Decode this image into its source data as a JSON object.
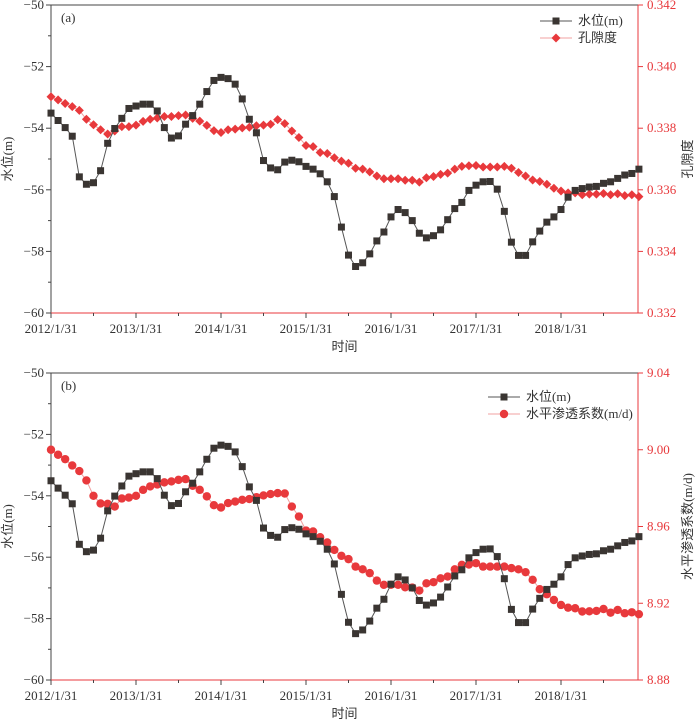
{
  "chart_data": [
    {
      "type": "line",
      "panel_label": "(a)",
      "xlabel": "时间",
      "ylabel": "水位(m)",
      "y2label": "孔隙度",
      "x_tick_labels": [
        "2012/1/31",
        "2013/1/31",
        "2014/1/31",
        "2015/1/31",
        "2016/1/31",
        "2017/1/31",
        "2018/1/31"
      ],
      "x_start": "2012/1/31",
      "x_interval": "monthly",
      "ylim": [
        -60,
        -50
      ],
      "y_ticks": [
        "-50",
        "-52",
        "-54",
        "-56",
        "-58",
        "-60"
      ],
      "y2lim": [
        0.332,
        0.342
      ],
      "y2_ticks": [
        "0.342",
        "0.340",
        "0.338",
        "0.336",
        "0.334",
        "0.332"
      ],
      "legend_position": "top-right",
      "series": [
        {
          "name": "水位(m)",
          "axis": "left",
          "marker": "square",
          "color": "#3a3532",
          "values": [
            -53.51,
            -53.75,
            -53.98,
            -54.26,
            -55.58,
            -55.82,
            -55.77,
            -55.38,
            -54.49,
            -54.01,
            -53.68,
            -53.36,
            -53.28,
            -53.22,
            -53.22,
            -53.44,
            -53.98,
            -54.32,
            -54.25,
            -53.87,
            -53.59,
            -53.22,
            -52.81,
            -52.45,
            -52.35,
            -52.39,
            -52.57,
            -53.05,
            -53.71,
            -54.15,
            -55.05,
            -55.29,
            -55.35,
            -55.1,
            -55.04,
            -55.09,
            -55.24,
            -55.33,
            -55.48,
            -55.74,
            -56.22,
            -57.21,
            -58.12,
            -58.49,
            -58.37,
            -58.08,
            -57.66,
            -57.37,
            -56.88,
            -56.64,
            -56.74,
            -57.0,
            -57.41,
            -57.56,
            -57.49,
            -57.3,
            -56.97,
            -56.61,
            -56.41,
            -56.02,
            -55.85,
            -55.74,
            -55.73,
            -55.98,
            -56.7,
            -57.7,
            -58.13,
            -58.13,
            -57.69,
            -57.34,
            -57.05,
            -56.88,
            -56.64,
            -56.24,
            -56.02,
            -55.96,
            -55.91,
            -55.89,
            -55.79,
            -55.74,
            -55.63,
            -55.52,
            -55.47,
            -55.33
          ]
        },
        {
          "name": "孔隙度",
          "axis": "right",
          "marker": "diamond",
          "color": "#e8393c",
          "values": [
            0.33902,
            0.33892,
            0.3388,
            0.3387,
            0.33858,
            0.33829,
            0.33811,
            0.33795,
            0.33781,
            0.33791,
            0.33805,
            0.33805,
            0.3381,
            0.33822,
            0.33829,
            0.33833,
            0.33838,
            0.33838,
            0.33841,
            0.33843,
            0.33832,
            0.33823,
            0.33809,
            0.33792,
            0.33786,
            0.33795,
            0.33797,
            0.33801,
            0.33803,
            0.33808,
            0.3381,
            0.33813,
            0.33828,
            0.33815,
            0.33791,
            0.3377,
            0.33744,
            0.3374,
            0.33721,
            0.33718,
            0.33704,
            0.33693,
            0.33686,
            0.3367,
            0.33667,
            0.33658,
            0.33645,
            0.33636,
            0.33636,
            0.33636,
            0.33631,
            0.33631,
            0.33625,
            0.33639,
            0.33643,
            0.3365,
            0.33654,
            0.33667,
            0.33676,
            0.33678,
            0.33679,
            0.33674,
            0.33674,
            0.33674,
            0.33676,
            0.3367,
            0.33656,
            0.33645,
            0.33632,
            0.33627,
            0.33618,
            0.33605,
            0.33596,
            0.3359,
            0.3359,
            0.33584,
            0.33586,
            0.33586,
            0.33588,
            0.33584,
            0.33587,
            0.33581,
            0.33584,
            0.33578
          ]
        }
      ]
    },
    {
      "type": "line",
      "panel_label": "(b)",
      "xlabel": "时间",
      "ylabel": "水位(m)",
      "y2label": "水平渗透系数(m/d)",
      "x_tick_labels": [
        "2012/1/31",
        "2013/1/31",
        "2014/1/31",
        "2015/1/31",
        "2016/1/31",
        "2017/1/31",
        "2018/1/31"
      ],
      "x_start": "2012/1/31",
      "x_interval": "monthly",
      "ylim": [
        -60,
        -50
      ],
      "y_ticks": [
        "-50",
        "-52",
        "-54",
        "-56",
        "-58",
        "-60"
      ],
      "y2lim": [
        8.88,
        9.04
      ],
      "y2_ticks": [
        "9.04",
        "9.00",
        "8.96",
        "8.92",
        "8.88"
      ],
      "legend_position": "top-right",
      "series": [
        {
          "name": "水位(m)",
          "axis": "left",
          "marker": "square",
          "color": "#3a3532",
          "values": [
            -53.51,
            -53.75,
            -53.98,
            -54.26,
            -55.58,
            -55.82,
            -55.77,
            -55.38,
            -54.49,
            -54.01,
            -53.68,
            -53.36,
            -53.28,
            -53.22,
            -53.22,
            -53.44,
            -53.98,
            -54.32,
            -54.25,
            -53.87,
            -53.59,
            -53.22,
            -52.81,
            -52.45,
            -52.35,
            -52.39,
            -52.57,
            -53.05,
            -53.71,
            -54.15,
            -55.05,
            -55.29,
            -55.35,
            -55.1,
            -55.04,
            -55.09,
            -55.24,
            -55.33,
            -55.48,
            -55.74,
            -56.22,
            -57.21,
            -58.12,
            -58.49,
            -58.37,
            -58.08,
            -57.66,
            -57.37,
            -56.88,
            -56.64,
            -56.74,
            -57.0,
            -57.41,
            -57.56,
            -57.49,
            -57.3,
            -56.97,
            -56.61,
            -56.41,
            -56.02,
            -55.85,
            -55.74,
            -55.73,
            -55.98,
            -56.7,
            -57.7,
            -58.13,
            -58.13,
            -57.69,
            -57.34,
            -57.05,
            -56.88,
            -56.64,
            -56.24,
            -56.02,
            -55.96,
            -55.91,
            -55.89,
            -55.79,
            -55.74,
            -55.63,
            -55.52,
            -55.47,
            -55.33
          ]
        },
        {
          "name": "水平渗透系数(m/d)",
          "axis": "right",
          "marker": "circle",
          "color": "#e8393c",
          "values": [
            9.0,
            8.9974,
            8.9951,
            8.9918,
            8.9889,
            8.984,
            8.976,
            8.972,
            8.9718,
            8.9704,
            8.9746,
            8.9751,
            8.976,
            8.9791,
            8.9809,
            8.9819,
            8.983,
            8.9835,
            8.9843,
            8.9847,
            8.9812,
            8.9791,
            8.9757,
            8.9711,
            8.9699,
            8.9722,
            8.973,
            8.9739,
            8.9743,
            8.9753,
            8.9762,
            8.9769,
            8.9774,
            8.9772,
            8.9704,
            8.9652,
            8.9579,
            8.9574,
            8.9544,
            8.9517,
            8.9478,
            8.9447,
            8.943,
            8.9391,
            8.9377,
            8.9357,
            8.9318,
            8.9296,
            8.9296,
            8.9296,
            8.9283,
            8.9282,
            8.9266,
            8.9304,
            8.931,
            8.933,
            8.9339,
            8.9377,
            8.94,
            8.9402,
            8.9409,
            8.9391,
            8.9391,
            8.9391,
            8.9391,
            8.9383,
            8.9377,
            8.9362,
            8.9322,
            8.9273,
            8.9247,
            8.9217,
            8.9191,
            8.9177,
            8.9174,
            8.9157,
            8.9158,
            8.916,
            8.917,
            8.9151,
            8.9165,
            8.9148,
            8.9153,
            8.9143
          ]
        }
      ]
    }
  ]
}
